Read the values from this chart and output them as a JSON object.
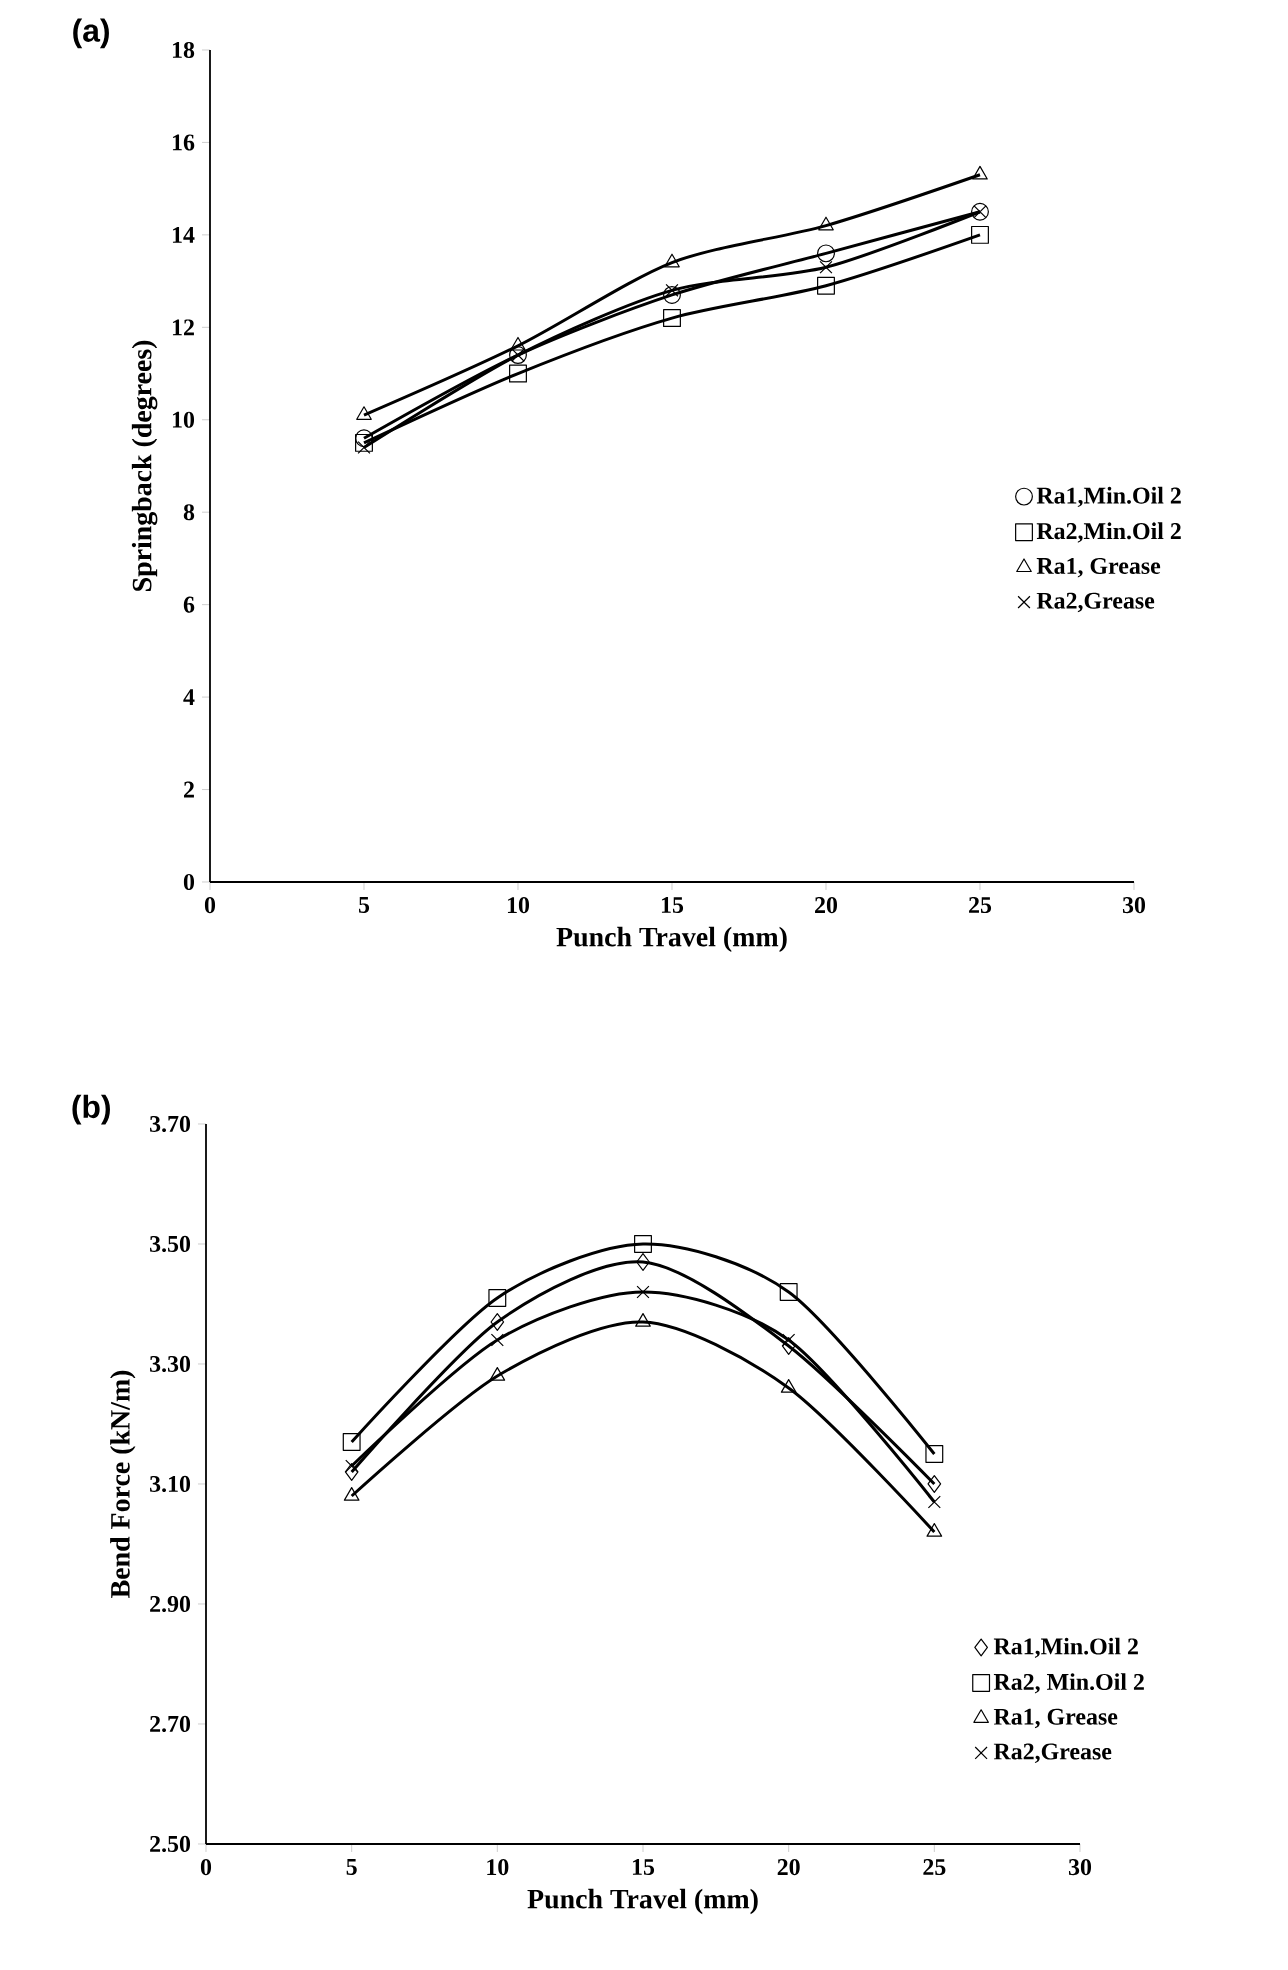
{
  "chart_data": [
    {
      "type": "line",
      "xlabel": "Punch Travel (mm)",
      "ylabel": "Springback (degrees)",
      "annotations": [
        "(a)"
      ],
      "x": [
        5,
        10,
        15,
        20,
        25
      ],
      "xlim": [
        0,
        30
      ],
      "xticks": [
        0,
        5,
        10,
        15,
        20,
        25,
        30
      ],
      "ylim": [
        0,
        18
      ],
      "yticks": [
        0,
        2,
        4,
        6,
        8,
        10,
        12,
        14,
        16,
        18
      ],
      "legend": "right",
      "series": [
        {
          "name": "Ra1,Min.Oil 2",
          "color": "#000000",
          "marker": "circle",
          "values": [
            9.6,
            11.4,
            12.7,
            13.6,
            14.5
          ]
        },
        {
          "name": "Ra2,Min.Oil 2",
          "color": "#000000",
          "marker": "square",
          "values": [
            9.5,
            11.0,
            12.2,
            12.9,
            14.0
          ]
        },
        {
          "name": "Ra1, Grease",
          "color": "#000000",
          "marker": "triangle",
          "values": [
            10.1,
            11.6,
            13.4,
            14.2,
            15.3
          ]
        },
        {
          "name": "Ra2,Grease",
          "color": "#000000",
          "marker": "cross",
          "values": [
            9.4,
            11.4,
            12.8,
            13.3,
            14.5
          ]
        }
      ]
    },
    {
      "type": "line",
      "xlabel": "Punch Travel (mm)",
      "ylabel": "Bend Force (kN/m)",
      "annotations": [
        "(b)"
      ],
      "x": [
        5,
        10,
        15,
        20,
        25
      ],
      "xlim": [
        0,
        30
      ],
      "xticks": [
        0,
        5,
        10,
        15,
        20,
        25,
        30
      ],
      "ylim": [
        2.5,
        3.7
      ],
      "yticks": [
        {
          "value": 2.5,
          "label": "2.50"
        },
        {
          "value": 2.7,
          "label": "2.70"
        },
        {
          "value": 2.9,
          "label": "2.90"
        },
        {
          "value": 3.1,
          "label": "3.10"
        },
        {
          "value": 3.3,
          "label": "3.30"
        },
        {
          "value": 3.5,
          "label": "3.50"
        },
        {
          "value": 3.7,
          "label": "3.70"
        }
      ],
      "legend": "right",
      "series": [
        {
          "name": "Ra1,Min.Oil 2",
          "color": "#000000",
          "marker": "diamond",
          "values": [
            3.12,
            3.37,
            3.47,
            3.33,
            3.1
          ]
        },
        {
          "name": "Ra2, Min.Oil 2",
          "color": "#000000",
          "marker": "square",
          "values": [
            3.17,
            3.41,
            3.5,
            3.42,
            3.15
          ]
        },
        {
          "name": "Ra1, Grease",
          "color": "#000000",
          "marker": "triangle",
          "values": [
            3.08,
            3.28,
            3.37,
            3.26,
            3.02
          ]
        },
        {
          "name": "Ra2,Grease",
          "color": "#000000",
          "marker": "cross",
          "values": [
            3.13,
            3.34,
            3.42,
            3.34,
            3.07
          ]
        }
      ]
    }
  ]
}
